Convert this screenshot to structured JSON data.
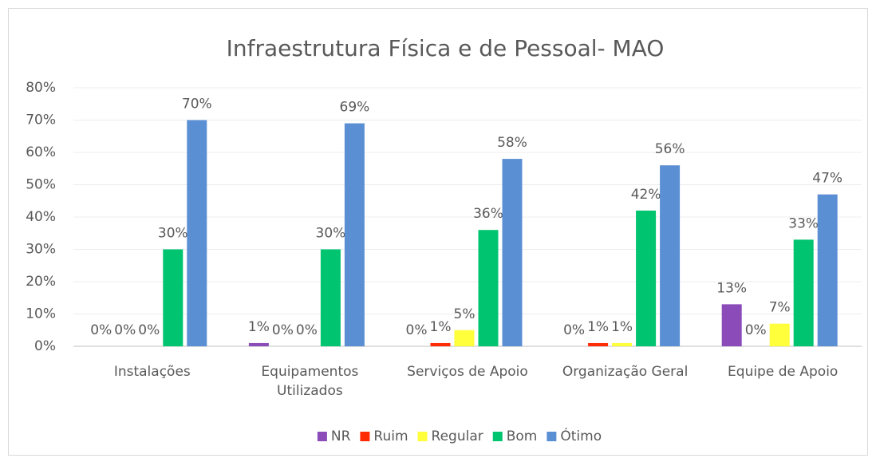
{
  "chart_data": {
    "type": "bar",
    "title": "Infraestrutura Física e de Pessoal- MAO",
    "categories": [
      "Instalações",
      "Equipamentos Utilizados",
      "Serviços de Apoio",
      "Organização Geral",
      "Equipe de Apoio"
    ],
    "series": [
      {
        "name": "NR",
        "color": "#8b4cba",
        "values": [
          0,
          1,
          0,
          0,
          13
        ],
        "value_labels": [
          "0%",
          "1%",
          "0%",
          "0%",
          "13%"
        ]
      },
      {
        "name": "Ruim",
        "color": "#ff2b05",
        "values": [
          0,
          0,
          1,
          1,
          0
        ],
        "value_labels": [
          "0%",
          "0%",
          "1%",
          "1%",
          "0%"
        ]
      },
      {
        "name": "Regular",
        "color": "#ffff3b",
        "values": [
          0,
          0,
          5,
          1,
          7
        ],
        "value_labels": [
          "0%",
          "0%",
          "5%",
          "1%",
          "7%"
        ]
      },
      {
        "name": "Bom",
        "color": "#00c46f",
        "values": [
          30,
          30,
          36,
          42,
          33
        ],
        "value_labels": [
          "30%",
          "30%",
          "36%",
          "42%",
          "33%"
        ]
      },
      {
        "name": "Ótimo",
        "color": "#5b8fd4",
        "values": [
          70,
          69,
          58,
          56,
          47
        ],
        "value_labels": [
          "70%",
          "69%",
          "58%",
          "56%",
          "47%"
        ]
      }
    ],
    "ylim": [
      0,
      80
    ],
    "yticks": [
      {
        "value": 0,
        "label": "0%"
      },
      {
        "value": 10,
        "label": "10%"
      },
      {
        "value": 20,
        "label": "20%"
      },
      {
        "value": 30,
        "label": "30%"
      },
      {
        "value": 40,
        "label": "40%"
      },
      {
        "value": 50,
        "label": "50%"
      },
      {
        "value": 60,
        "label": "60%"
      },
      {
        "value": 70,
        "label": "70%"
      },
      {
        "value": 80,
        "label": "80%"
      }
    ],
    "grid": true,
    "legend": "bottom"
  }
}
